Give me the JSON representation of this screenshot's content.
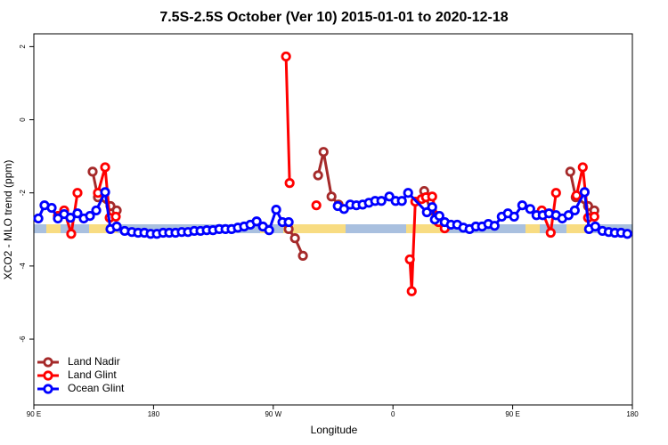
{
  "chart_data": {
    "type": "line",
    "title": "7.5S-2.5S October (Ver 10)   2015-01-01 to 2020-12-18",
    "x_label": "Longitude",
    "y_label": "XCO2 - MLO trend (ppm)",
    "xlim": [
      90,
      540
    ],
    "xticks": [
      {
        "value": 90,
        "label": "90 E"
      },
      180,
      {
        "value": 270,
        "label": "90 W"
      },
      {
        "value": 360,
        "label": "0"
      },
      {
        "value": 450,
        "label": "90 E"
      },
      {
        "value": 540,
        "label": "180"
      }
    ],
    "ylim": [
      -7.8,
      2.35
    ],
    "yticks": [
      2,
      0,
      -2,
      -4,
      -6
    ],
    "legend": "bottom-left",
    "series": [
      {
        "name": "Land Nadir",
        "color": "#a52a2a",
        "x": [
          134.2,
          138.2,
          147.6,
          152.3,
          null,
          281.6,
          286.3,
          292.3,
          null,
          303.7,
          307.8,
          313.8,
          319.1,
          null,
          383.5,
          388.2,
          392.8,
          397.5,
          null,
          493.3,
          497.4,
          506.7,
          511.4
        ],
        "values": [
          -1.42,
          -2.12,
          -2.36,
          -2.48,
          null,
          -2.99,
          -3.24,
          -3.72,
          null,
          -1.52,
          -0.88,
          -2.1,
          -2.32,
          null,
          -1.95,
          -2.48,
          -2.63,
          -2.82,
          null,
          -1.42,
          -2.12,
          -2.36,
          -2.48
        ]
      },
      {
        "name": "Land Glint",
        "color": "#ff0000",
        "x": [
          108.1,
          112.8,
          118.1,
          122.8,
          null,
          138.2,
          143.6,
          147,
          151.6,
          null,
          279.6,
          282.3,
          null,
          302.4,
          null,
          372.7,
          374.1,
          376.8,
          381.5,
          384.8,
          389.5,
          394.2,
          398.9,
          null,
          471.9,
          478.6,
          482.6,
          null,
          498,
          502.7,
          506.7,
          511.4
        ],
        "values": [
          -2.63,
          -2.48,
          -3.12,
          -2.0,
          null,
          -2.0,
          -1.3,
          -2.68,
          -2.65,
          null,
          1.73,
          -1.73,
          null,
          -2.34,
          null,
          -3.82,
          -4.69,
          -2.24,
          -2.17,
          -2.12,
          -2.1,
          -2.8,
          -2.97,
          null,
          -2.48,
          -3.09,
          -2.0,
          null,
          -2.07,
          -1.3,
          -2.68,
          -2.65
        ]
      },
      {
        "name": "Ocean Glint",
        "color": "#0000ff",
        "x": [
          93.4,
          98,
          103.4,
          108.1,
          112.8,
          117.5,
          122.8,
          127.5,
          132.2,
          136.9,
          143.6,
          147.6,
          152.3,
          158.3,
          163.7,
          168.4,
          173.1,
          177.8,
          182.5,
          187.2,
          191.8,
          196.5,
          201.2,
          205.9,
          210.6,
          215.3,
          220,
          224.7,
          229.4,
          234.1,
          238.7,
          243.4,
          248.1,
          252.8,
          257.5,
          262.2,
          266.9,
          272.2,
          276.9,
          281.6,
          null,
          318.5,
          323.2,
          327.9,
          332.5,
          337.2,
          341.9,
          346.6,
          351.3,
          357.3,
          362,
          366.7,
          371.4,
          385.5,
          389.5,
          391.5,
          394.9,
          398.9,
          403.6,
          408.3,
          412.9,
          417.6,
          422.3,
          427,
          431.7,
          436.4,
          441.8,
          446.4,
          451.1,
          457.2,
          463.2,
          467.9,
          472.6,
          477.3,
          482.6,
          487.3,
          492,
          496.7,
          504.1,
          507.4,
          512.1,
          517.5,
          522.2,
          526.8,
          531.5,
          536.2
        ],
        "values": [
          -2.7,
          -2.34,
          -2.41,
          -2.7,
          -2.58,
          -2.68,
          -2.56,
          -2.7,
          -2.63,
          -2.48,
          -1.98,
          -2.99,
          -2.92,
          -3.04,
          -3.07,
          -3.09,
          -3.09,
          -3.12,
          -3.12,
          -3.09,
          -3.09,
          -3.09,
          -3.07,
          -3.07,
          -3.04,
          -3.04,
          -3.02,
          -3.02,
          -2.99,
          -2.99,
          -2.99,
          -2.95,
          -2.92,
          -2.87,
          -2.78,
          -2.92,
          -3.02,
          -2.46,
          -2.8,
          -2.8,
          null,
          -2.36,
          -2.44,
          -2.32,
          -2.34,
          -2.32,
          -2.27,
          -2.22,
          -2.22,
          -2.1,
          -2.22,
          -2.22,
          -2.0,
          -2.53,
          -2.39,
          -2.73,
          -2.63,
          -2.8,
          -2.87,
          -2.87,
          -2.95,
          -2.99,
          -2.92,
          -2.92,
          -2.85,
          -2.9,
          -2.65,
          -2.56,
          -2.65,
          -2.34,
          -2.44,
          -2.61,
          -2.61,
          -2.56,
          -2.61,
          -2.7,
          -2.61,
          -2.48,
          -1.98,
          -2.99,
          -2.92,
          -3.04,
          -3.07,
          -3.09,
          -3.09,
          -3.12
        ]
      }
    ]
  }
}
